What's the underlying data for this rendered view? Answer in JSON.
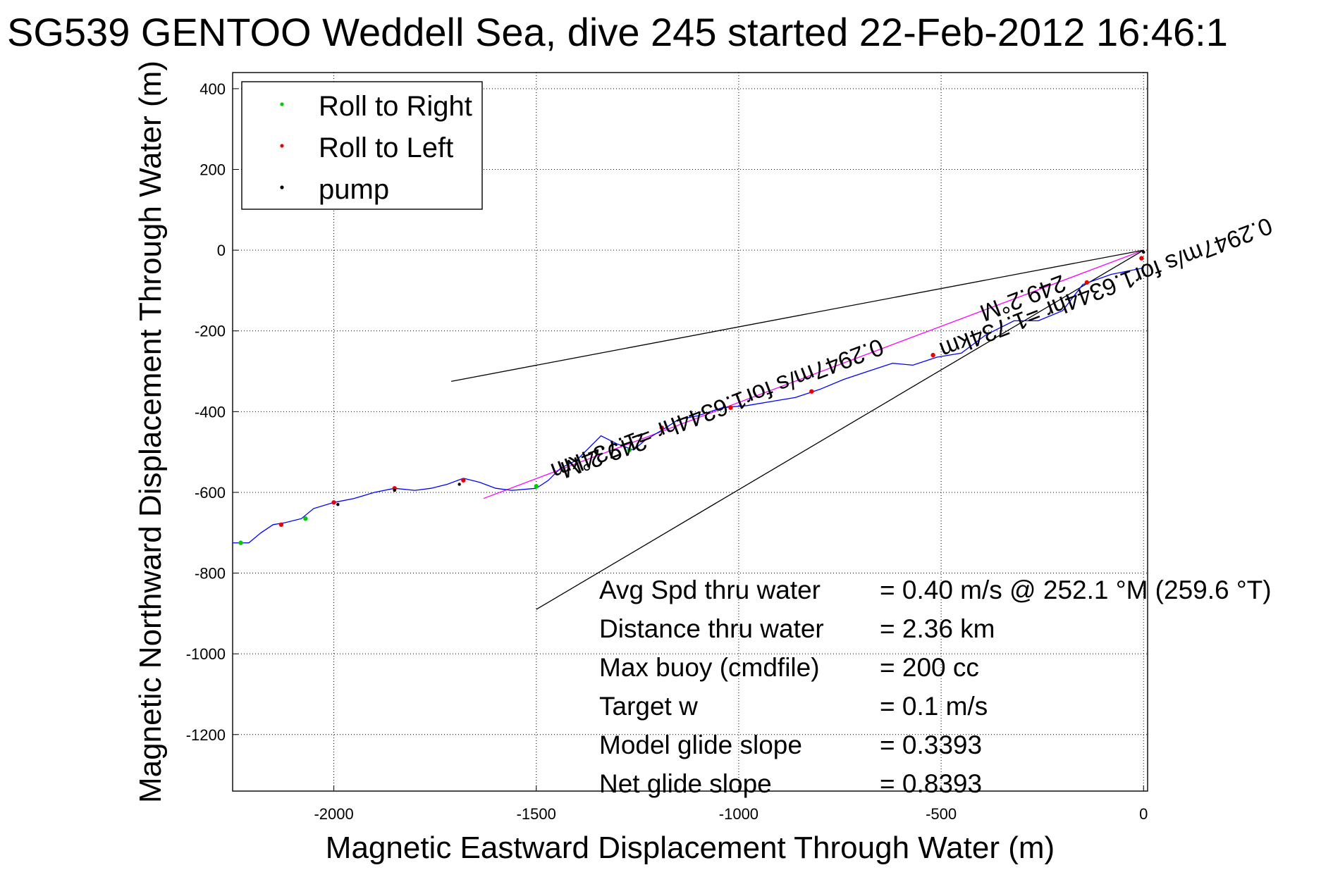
{
  "chart_data": {
    "type": "line",
    "title": "SG539 GENTOO Weddell Sea, dive 245 started 22-Feb-2012 16:46:1",
    "xlabel": "Magnetic Eastward Displacement Through Water (m)",
    "ylabel": "Magnetic Northward Displacement Through Water (m)",
    "xlim": [
      -2250,
      10
    ],
    "ylim": [
      -1340,
      440
    ],
    "xticks": [
      -2000,
      -1500,
      -1000,
      -500,
      0
    ],
    "yticks": [
      400,
      200,
      0,
      -200,
      -400,
      -600,
      -800,
      -1000,
      -1200
    ],
    "grid": true,
    "legend": {
      "placement": "top-left",
      "entries": [
        {
          "label": "Roll to Right",
          "color": "#00cc00"
        },
        {
          "label": "Roll to Left",
          "color": "#ee0000"
        },
        {
          "label": "pump",
          "color": "#000000"
        }
      ]
    },
    "track": {
      "name": "track",
      "color": "#0000ff",
      "x": [
        0,
        -5,
        -30,
        -80,
        -150,
        -200,
        -260,
        -320,
        -390,
        -450,
        -510,
        -570,
        -620,
        -680,
        -740,
        -800,
        -860,
        -920,
        -980,
        -1040,
        -1100,
        -1150,
        -1180,
        -1230,
        -1260,
        -1300,
        -1340,
        -1400,
        -1440,
        -1470,
        -1500,
        -1560,
        -1600,
        -1640,
        -1680,
        -1720,
        -1760,
        -1800,
        -1850,
        -1900,
        -1950,
        -2000,
        -2050,
        -2080,
        -2120,
        -2150,
        -2180,
        -2210,
        -2250
      ],
      "y": [
        -45,
        -45,
        -50,
        -60,
        -85,
        -150,
        -175,
        -175,
        -210,
        -255,
        -265,
        -285,
        -280,
        -300,
        -320,
        -345,
        -365,
        -375,
        -385,
        -390,
        -410,
        -420,
        -440,
        -470,
        -495,
        -480,
        -460,
        -520,
        -540,
        -570,
        -590,
        -595,
        -590,
        -575,
        -565,
        -580,
        -590,
        -595,
        -590,
        -600,
        -615,
        -625,
        -640,
        -665,
        -675,
        -680,
        -700,
        -725,
        -725
      ]
    },
    "markers": {
      "roll_right": {
        "color": "#00cc00",
        "x": [
          -1270,
          -1500,
          -2070,
          -2230
        ],
        "y": [
          -495,
          -585,
          -665,
          -725
        ]
      },
      "roll_left": {
        "color": "#ee0000",
        "x": [
          -5,
          -140,
          -520,
          -820,
          -1020,
          -1190,
          -1680,
          -1850,
          -2000,
          -2130
        ],
        "y": [
          -20,
          -80,
          -260,
          -350,
          -390,
          -440,
          -570,
          -590,
          -625,
          -680
        ]
      },
      "pump": {
        "color": "#000000",
        "x": [
          0,
          -1690,
          -1850,
          -1990
        ],
        "y": [
          -5,
          -580,
          -595,
          -630
        ]
      }
    },
    "lines": [
      {
        "name": "heading-line",
        "color": "#ff00ff",
        "x": [
          0,
          -1630
        ],
        "y": [
          0,
          -615
        ]
      },
      {
        "name": "bound-line-upper",
        "color": "#000000",
        "x": [
          0,
          -1710
        ],
        "y": [
          0,
          -325
        ]
      },
      {
        "name": "bound-line-lower",
        "color": "#000000",
        "x": [
          0,
          -1500
        ],
        "y": [
          0,
          -890
        ]
      }
    ],
    "annotations": [
      {
        "text": "249.2°M",
        "x": -1340,
        "y": -490,
        "rotation_deg": 160
      },
      {
        "text": "0.2947m/s for1.6344hr =1.734km",
        "x": -1060,
        "y": -375,
        "rotation_deg": 159
      },
      {
        "text": "249.2°M",
        "x": -305,
        "y": -100,
        "rotation_deg": 159
      },
      {
        "text": "0.2947m/s for1.6344hr =1.734km",
        "x": -100,
        "y": -75,
        "rotation_deg": 159
      }
    ],
    "stats": [
      {
        "label": "Avg Spd thru water",
        "value": "=  0.40 m/s @ 252.1 °M (259.6 °T)"
      },
      {
        "label": "Distance thru water",
        "value": "=  2.36 km"
      },
      {
        "label": "Max buoy (cmdfile)",
        "value": "= 200 cc"
      },
      {
        "label": "Target w",
        "value": "= 0.1 m/s"
      },
      {
        "label": "Model glide slope",
        "value": "= 0.3393"
      },
      {
        "label": "Net glide slope",
        "value": "= 0.8393"
      }
    ]
  }
}
